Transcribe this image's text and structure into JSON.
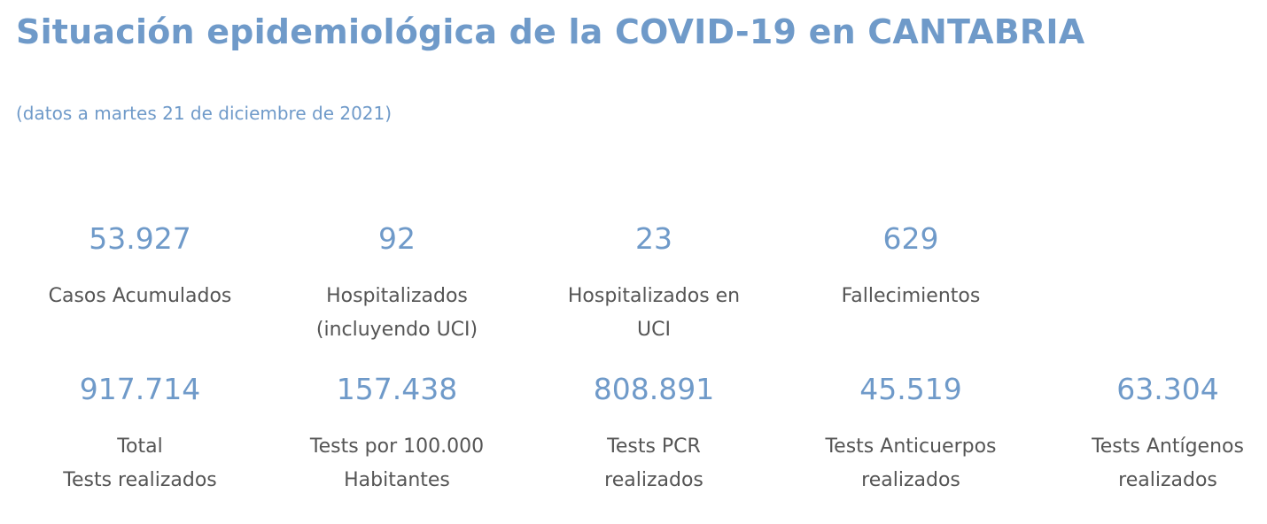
{
  "header": {
    "title": "Situación epidemiológica de la COVID-19 en CANTABRIA",
    "date_note": "(datos a martes 21 de diciembre de 2021)"
  },
  "stats_row1": [
    {
      "value": "53.927",
      "label": "Casos Acumulados"
    },
    {
      "value": "92",
      "label": "Hospitalizados\n(incluyendo UCI)"
    },
    {
      "value": "23",
      "label": "Hospitalizados en\nUCI"
    },
    {
      "value": "629",
      "label": "Fallecimientos"
    }
  ],
  "stats_row2": [
    {
      "value": "917.714",
      "label": "Total\nTests realizados"
    },
    {
      "value": "157.438",
      "label": "Tests por 100.000\nHabitantes"
    },
    {
      "value": "808.891",
      "label": "Tests PCR\nrealizados"
    },
    {
      "value": "45.519",
      "label": "Tests Anticuerpos\nrealizados"
    },
    {
      "value": "63.304",
      "label": "Tests Antígenos\nrealizados"
    }
  ],
  "colors": {
    "accent": "#6f9ac9",
    "label_text": "#555555",
    "background": "#ffffff"
  }
}
